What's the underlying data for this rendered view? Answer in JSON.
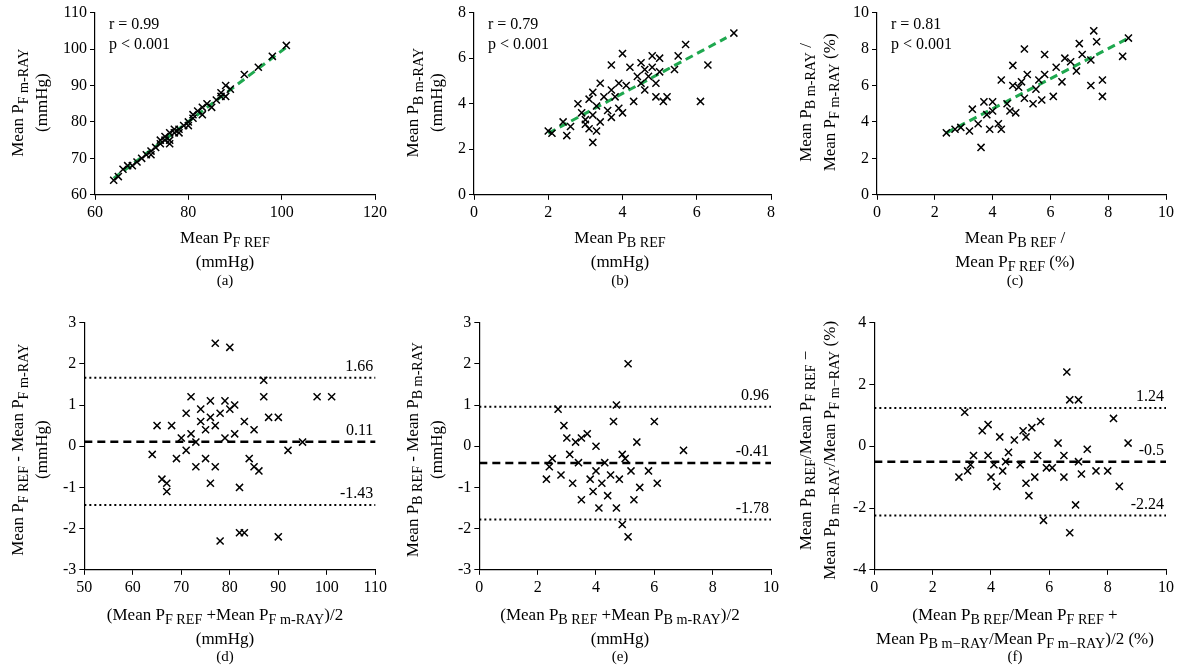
{
  "chart_data": [
    {
      "type": "scatter",
      "title": "(a)",
      "xlabel": "Mean P$_{F REF}$\n(mmHg)",
      "ylabel": "Mean P$_{F m-RAY}$\n(mmHg)",
      "xlim": [
        60,
        120
      ],
      "xticks": [
        60,
        80,
        100,
        120
      ],
      "ylim": [
        60,
        110
      ],
      "yticks": [
        60,
        70,
        80,
        90,
        100,
        110
      ],
      "grid": false,
      "legend": false,
      "marker": "cross",
      "annotations": [
        "r = 0.99",
        "p < 0.001"
      ],
      "series": [
        {
          "color": "#000000",
          "x": [
            64,
            65,
            66,
            67,
            68,
            69,
            70,
            71,
            72,
            72,
            73,
            74,
            74,
            75,
            75,
            76,
            76,
            77,
            77,
            78,
            78,
            76,
            79,
            80,
            80,
            81,
            81,
            82,
            83,
            84,
            83,
            85,
            86,
            87,
            87,
            88,
            88,
            89,
            92,
            95,
            98,
            101
          ],
          "values": [
            64,
            65,
            67,
            68,
            68,
            69,
            70,
            71,
            72,
            71,
            73,
            74,
            75,
            75,
            76,
            77,
            75,
            77,
            78,
            78,
            77,
            74,
            79,
            80,
            79,
            81,
            82,
            83,
            84,
            85,
            82,
            84,
            86,
            87,
            88,
            87,
            90,
            89,
            93,
            95,
            98,
            101
          ]
        },
        {
          "type": "line",
          "marker": "none",
          "color": "#1fa84f",
          "line_style": "dashed",
          "x": [
            64,
            101
          ],
          "values": [
            64.5,
            100.5
          ]
        }
      ]
    },
    {
      "type": "scatter",
      "title": "(b)",
      "xlabel": "Mean P$_{B REF}$\n(mmHg)",
      "ylabel": "Mean P$_{B m-RAY}$\n(mmHg)",
      "xlim": [
        0,
        8
      ],
      "xticks": [
        0,
        2,
        4,
        6,
        8
      ],
      "ylim": [
        0,
        8
      ],
      "yticks": [
        0,
        2,
        4,
        6,
        8
      ],
      "grid": false,
      "legend": false,
      "marker": "cross",
      "annotations": [
        "r = 0.79",
        "p < 0.001"
      ],
      "series": [
        {
          "color": "#000000",
          "x": [
            2,
            2.1,
            2.4,
            2.5,
            2.6,
            2.8,
            2.9,
            3,
            3,
            3.1,
            3.1,
            3.2,
            3.2,
            3.2,
            3.3,
            3.3,
            3.4,
            3.4,
            3.5,
            3.6,
            3.7,
            3.7,
            3.7,
            3.8,
            3.9,
            3.9,
            4,
            4,
            4.1,
            4.2,
            4.3,
            4.4,
            4.5,
            4.5,
            4.6,
            4.6,
            4.7,
            4.8,
            4.8,
            4.9,
            4.9,
            5,
            5,
            5.1,
            5.2,
            5.4,
            5.5,
            5.7,
            6.1,
            6.3,
            7
          ],
          "values": [
            2.8,
            2.7,
            3.2,
            2.6,
            3,
            4,
            3.6,
            3.3,
            3.1,
            4.2,
            2.9,
            2.3,
            4.5,
            3.5,
            2.8,
            3.9,
            4.9,
            3.2,
            4.3,
            3.7,
            4.6,
            5.7,
            3.4,
            4.3,
            4.9,
            3.8,
            6.2,
            3.6,
            4.8,
            5.6,
            4.1,
            5.2,
            4.9,
            5.8,
            5.5,
            4.6,
            5.2,
            6.1,
            5.6,
            4.9,
            4.3,
            6,
            5.4,
            4.1,
            4.3,
            5.5,
            6.1,
            6.6,
            4.1,
            5.7,
            7.1
          ]
        },
        {
          "type": "line",
          "marker": "none",
          "color": "#1fa84f",
          "line_style": "dashed",
          "x": [
            2,
            6.8
          ],
          "values": [
            2.7,
            6.9
          ]
        }
      ]
    },
    {
      "type": "scatter",
      "title": "(c)",
      "xlabel": "Mean P$_{B REF}$ /\nMean P$_{F REF}$ (%)",
      "ylabel": "Mean P$_{B m-RAY}$ /\nMean P$_{F m-RAY}$ (%)",
      "xlim": [
        0,
        10
      ],
      "xticks": [
        0,
        2,
        4,
        6,
        8,
        10
      ],
      "ylim": [
        0,
        10
      ],
      "yticks": [
        0,
        2,
        4,
        6,
        8,
        10
      ],
      "grid": false,
      "legend": false,
      "marker": "cross",
      "annotations": [
        "r = 0.81",
        "p < 0.001"
      ],
      "series": [
        {
          "color": "#000000",
          "x": [
            2.4,
            2.7,
            2.9,
            3.2,
            3.3,
            3.5,
            3.6,
            3.7,
            3.8,
            3.9,
            4,
            4,
            4.2,
            4.3,
            4.3,
            4.5,
            4.6,
            4.7,
            4.7,
            4.8,
            4.9,
            5,
            5.1,
            5.1,
            5.2,
            5.4,
            5.5,
            5.6,
            5.7,
            5.8,
            5.8,
            6.1,
            6.2,
            6.4,
            6.5,
            6.7,
            6.9,
            7,
            7.1,
            7.4,
            7.4,
            7.5,
            7.6,
            7.8,
            7.8,
            8.5,
            8.7
          ],
          "values": [
            3.4,
            3.6,
            3.7,
            3.5,
            4.7,
            3.9,
            2.6,
            5.1,
            4.4,
            3.6,
            5.1,
            4.6,
            3.9,
            3.6,
            6.3,
            5,
            4.6,
            7.1,
            6,
            4.5,
            5.9,
            6.2,
            8,
            5.3,
            6.6,
            5,
            5.8,
            6.3,
            5.2,
            7.7,
            6.6,
            5.4,
            7,
            6.2,
            7.5,
            7.3,
            6.8,
            8.3,
            7.7,
            7.4,
            6,
            9,
            8.4,
            5.4,
            6.3,
            7.6,
            8.6
          ]
        },
        {
          "type": "line",
          "marker": "none",
          "color": "#1fa84f",
          "line_style": "dashed",
          "x": [
            2.4,
            8.7
          ],
          "values": [
            3.4,
            8.6
          ]
        }
      ]
    },
    {
      "type": "scatter",
      "title": "(d)",
      "xlabel": "(Mean P$_{F REF}$ +Mean P$_{F m-RAY}$)/2\n(mmHg)",
      "ylabel": "Mean P$_{F REF}$ - Mean P$_{F m-RAY}$\n(mmHg)",
      "xlim": [
        50,
        110
      ],
      "xticks": [
        50,
        60,
        70,
        80,
        90,
        100,
        110
      ],
      "ylim": [
        -3,
        3
      ],
      "yticks": [
        -3,
        -2,
        -1,
        0,
        1,
        2,
        3
      ],
      "grid": false,
      "legend": false,
      "marker": "cross",
      "ref_lines": [
        {
          "axis": "y",
          "value": 1.66,
          "label": "1.66",
          "line_style": "dotted",
          "color": "#000000"
        },
        {
          "axis": "y",
          "value": 0.11,
          "label": "0.11",
          "line_style": "dashed",
          "color": "#000000"
        },
        {
          "axis": "y",
          "value": -1.43,
          "label": "-1.43",
          "line_style": "dotted",
          "color": "#000000"
        }
      ],
      "series": [
        {
          "color": "#000000",
          "x": [
            64,
            65,
            66,
            67,
            67,
            68,
            69,
            70,
            71,
            71,
            72,
            72,
            73,
            73,
            74,
            74,
            75,
            75,
            76,
            76,
            76,
            77,
            77,
            77,
            78,
            78,
            79,
            79,
            80,
            80,
            81,
            81,
            82,
            82,
            83,
            83,
            84,
            85,
            85,
            86,
            87,
            87,
            88,
            90,
            90,
            92,
            95,
            98,
            101
          ],
          "values": [
            -0.2,
            0.5,
            -0.8,
            -1.1,
            -0.9,
            0.5,
            -0.3,
            0.2,
            0.8,
            -0.1,
            0.3,
            1.2,
            0.1,
            -0.5,
            0.6,
            0.9,
            0.4,
            -0.3,
            0.7,
            -0.9,
            1.1,
            0.5,
            -0.5,
            2.5,
            -2.3,
            0.8,
            1.1,
            0.2,
            2.4,
            0.9,
            1,
            0.3,
            -1,
            -2.1,
            -2.1,
            0.6,
            -0.3,
            -0.5,
            0.4,
            -0.6,
            1.2,
            1.6,
            0.7,
            -2.2,
            0.7,
            -0.1,
            0.1,
            1.2,
            1.2
          ]
        }
      ]
    },
    {
      "type": "scatter",
      "title": "(e)",
      "xlabel": "(Mean P$_{B REF}$ +Mean P$_{B m-RAY}$)/2\n(mmHg)",
      "ylabel": "Mean P$_{B REF}$ - Mean P$_{B m-RAY}$\n(mmHg)",
      "xlim": [
        0,
        10
      ],
      "xticks": [
        0,
        2,
        4,
        6,
        8,
        10
      ],
      "ylim": [
        -3,
        3
      ],
      "yticks": [
        -3,
        -2,
        -1,
        0,
        1,
        2,
        3
      ],
      "grid": false,
      "legend": false,
      "marker": "cross",
      "ref_lines": [
        {
          "axis": "y",
          "value": 0.96,
          "label": "0.96",
          "line_style": "dotted",
          "color": "#000000"
        },
        {
          "axis": "y",
          "value": -0.41,
          "label": "-0.41",
          "line_style": "dashed",
          "color": "#000000"
        },
        {
          "axis": "y",
          "value": -1.78,
          "label": "-1.78",
          "line_style": "dotted",
          "color": "#000000"
        }
      ],
      "series": [
        {
          "color": "#000000",
          "x": [
            2.3,
            2.4,
            2.5,
            2.7,
            2.8,
            2.9,
            3,
            3.1,
            3.2,
            3.3,
            3.4,
            3.5,
            3.5,
            3.7,
            3.8,
            3.9,
            4,
            4,
            4.1,
            4.2,
            4.3,
            4.4,
            4.5,
            4.6,
            4.7,
            4.7,
            4.8,
            4.9,
            4.9,
            5,
            5.1,
            5.1,
            5.2,
            5.3,
            5.4,
            5.5,
            5.8,
            6,
            6.1,
            7
          ],
          "values": [
            -0.8,
            -0.5,
            -0.3,
            0.9,
            -0.7,
            0.5,
            0.2,
            -0.2,
            -0.9,
            0.1,
            -0.4,
            -1.3,
            0.2,
            0.3,
            -0.8,
            -1.1,
            0,
            -0.6,
            -1.5,
            -0.9,
            -0.4,
            -1.2,
            -0.7,
            0.6,
            1,
            -1.5,
            -0.8,
            -0.2,
            -1.9,
            -0.3,
            2,
            -2.2,
            -0.6,
            -1.3,
            0.1,
            -1,
            -0.6,
            0.6,
            -0.9,
            -0.1
          ]
        }
      ]
    },
    {
      "type": "scatter",
      "title": "(f)",
      "xlabel": "(Mean P$_{B REF}$/Mean P$_{F REF}$ +\nMean P$_{B m−RAY}$/Mean P$_{F m−RAY}$)/2 (%)",
      "ylabel": "Mean P$_{B REF}$/Mean P$_{F REF}$ −\nMean P$_{B m−RAY}$/Mean P$_{F m−RAY}$ (%)",
      "xlim": [
        0,
        10
      ],
      "xticks": [
        0,
        2,
        4,
        6,
        8,
        10
      ],
      "ylim": [
        -4,
        4
      ],
      "yticks": [
        -4,
        -2,
        0,
        2,
        4
      ],
      "grid": false,
      "legend": false,
      "marker": "cross",
      "ref_lines": [
        {
          "axis": "y",
          "value": 1.24,
          "label": "1.24",
          "line_style": "dotted",
          "color": "#000000"
        },
        {
          "axis": "y",
          "value": -0.5,
          "label": "-0.5",
          "line_style": "dashed",
          "color": "#000000"
        },
        {
          "axis": "y",
          "value": -2.24,
          "label": "-2.24",
          "line_style": "dotted",
          "color": "#000000"
        }
      ],
      "series": [
        {
          "color": "#000000",
          "x": [
            2.9,
            3.1,
            3.2,
            3.3,
            3.4,
            3.7,
            3.9,
            3.9,
            4,
            4.1,
            4.2,
            4.3,
            4.4,
            4.5,
            4.6,
            4.8,
            5,
            5.1,
            5.2,
            5.2,
            5.3,
            5.4,
            5.5,
            5.6,
            5.7,
            5.8,
            5.9,
            6.1,
            6.3,
            6.5,
            6.5,
            6.6,
            6.7,
            6.7,
            6.9,
            7,
            7,
            7.1,
            7.3,
            7.6,
            8,
            8.2,
            8.4,
            8.7
          ],
          "values": [
            -1,
            1.1,
            -0.8,
            -0.6,
            -0.3,
            0.5,
            -0.3,
            0.7,
            -1,
            -0.6,
            -1.3,
            0.3,
            -0.8,
            -0.5,
            -0.2,
            0.2,
            -0.6,
            0.5,
            0.3,
            -1.2,
            -1.6,
            0.6,
            -1,
            -0.3,
            0.8,
            -2.4,
            -0.7,
            -0.7,
            0.1,
            -1,
            -0.3,
            2.4,
            1.5,
            -2.8,
            -1.9,
            1.5,
            -0.5,
            -0.9,
            -0.1,
            -0.8,
            -0.8,
            0.9,
            -1.3,
            0.1
          ]
        }
      ]
    }
  ]
}
